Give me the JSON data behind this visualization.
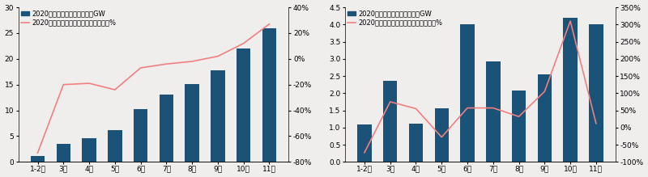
{
  "chart1": {
    "categories": [
      "1-2月",
      "3月",
      "4月",
      "5月",
      "6月",
      "7月",
      "8月",
      "9月",
      "10月",
      "11月"
    ],
    "bar_values": [
      1.1,
      3.5,
      4.6,
      6.2,
      10.2,
      13.1,
      15.1,
      17.8,
      22.0,
      26.0
    ],
    "line_values": [
      -0.73,
      -0.2,
      -0.19,
      -0.24,
      -0.07,
      -0.04,
      -0.02,
      0.02,
      0.12,
      0.27
    ],
    "bar_color": "#1b5278",
    "line_color": "#f08080",
    "bar_label": "2020年光伏新增累计装机量，GW",
    "line_label": "2020年光伏新增累计装机量同比增速，%",
    "ylim_left": [
      0,
      30
    ],
    "ylim_right": [
      -0.8,
      0.4
    ],
    "yticks_right": [
      -0.8,
      -0.6,
      -0.4,
      -0.2,
      0.0,
      0.2,
      0.4
    ],
    "ytick_labels_right": [
      "-80%",
      "-60%",
      "-40%",
      "-20%",
      "0%",
      "20%",
      "40%"
    ],
    "yticks_left": [
      0,
      5,
      10,
      15,
      20,
      25,
      30
    ]
  },
  "chart2": {
    "categories": [
      "1-2月",
      "3月",
      "4月",
      "5月",
      "6月",
      "7月",
      "8月",
      "9月",
      "10月",
      "11月"
    ],
    "bar_values": [
      1.08,
      2.35,
      1.12,
      1.57,
      4.0,
      2.93,
      2.07,
      2.55,
      4.2,
      4.0
    ],
    "line_values": [
      -0.73,
      0.75,
      0.55,
      -0.28,
      0.57,
      0.57,
      0.32,
      1.05,
      3.1,
      0.12
    ],
    "bar_color": "#1b5278",
    "line_color": "#f08080",
    "bar_label": "2020年光伏每月新增装机量，GW",
    "line_label": "2020年光伏每月新增装机量同比增速，%",
    "ylim_left": [
      0,
      4.5
    ],
    "ylim_right": [
      -1.0,
      3.5
    ],
    "yticks_right": [
      -1.0,
      -0.5,
      0.0,
      0.5,
      1.0,
      1.5,
      2.0,
      2.5,
      3.0,
      3.5
    ],
    "ytick_labels_right": [
      "-100%",
      "-50%",
      "0%",
      "50%",
      "100%",
      "150%",
      "200%",
      "250%",
      "300%",
      "350%"
    ],
    "yticks_left": [
      0,
      0.5,
      1.0,
      1.5,
      2.0,
      2.5,
      3.0,
      3.5,
      4.0,
      4.5
    ]
  },
  "background_color": "#f0eded",
  "font_size": 6.5,
  "legend_font_size": 6.0
}
